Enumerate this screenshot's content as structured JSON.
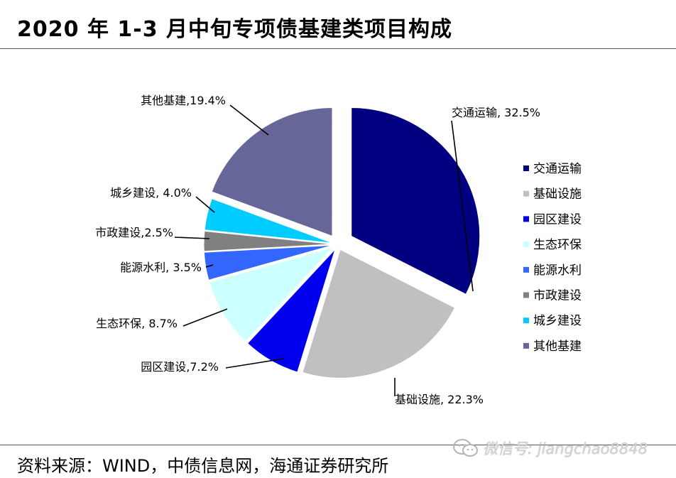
{
  "header": {
    "title": "2020 年 1-3 月中旬专项债基建类项目构成"
  },
  "footer": {
    "source": "资料来源：WIND，中债信息网，海通证券研究所"
  },
  "watermark": {
    "text": "微信号: jiangchao8848",
    "icon": "wechat-icon"
  },
  "chart_data": {
    "type": "pie",
    "title": "2020 年 1-3 月中旬专项债基建类项目构成",
    "legend_position": "right",
    "slices": [
      {
        "name": "交通运输",
        "value": 32.5,
        "label": "交通运输, 32.5%",
        "color": "#000080"
      },
      {
        "name": "基础设施",
        "value": 22.3,
        "label": "基础设施, 22.3%",
        "color": "#c0c0c0"
      },
      {
        "name": "园区建设",
        "value": 7.2,
        "label": "园区建设,7.2%",
        "color": "#0000ee"
      },
      {
        "name": "生态环保",
        "value": 8.7,
        "label": "生态环保, 8.7%",
        "color": "#ccffff"
      },
      {
        "name": "能源水利",
        "value": 3.5,
        "label": "能源水利, 3.5%",
        "color": "#3366ff"
      },
      {
        "name": "市政建设",
        "value": 2.5,
        "label": "市政建设,2.5%",
        "color": "#808080"
      },
      {
        "name": "城乡建设",
        "value": 4.0,
        "label": "城乡建设, 4.0%",
        "color": "#00ccff"
      },
      {
        "name": "其他基建",
        "value": 19.4,
        "label": "其他基建,19.4%",
        "color": "#666699"
      }
    ]
  }
}
